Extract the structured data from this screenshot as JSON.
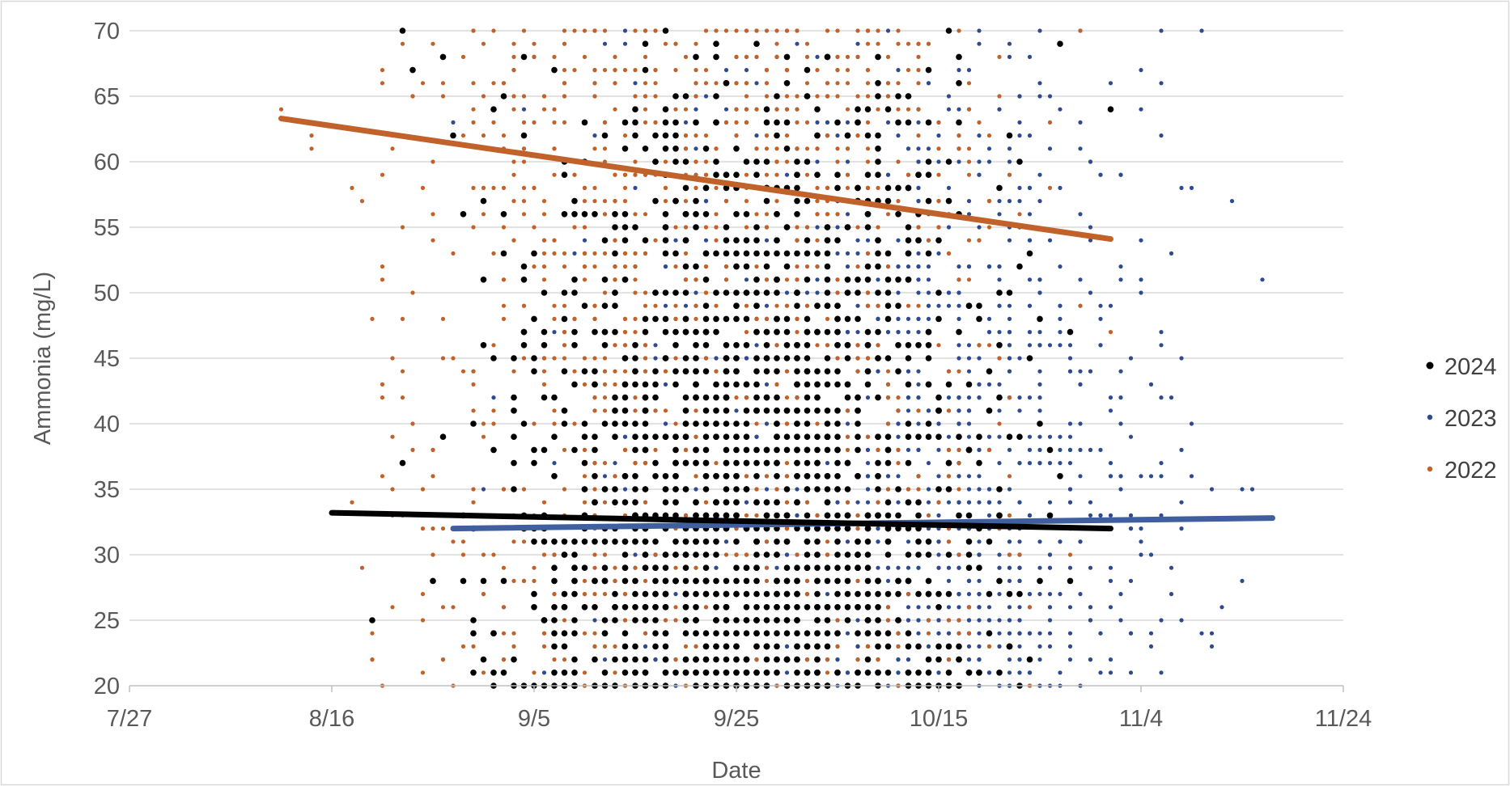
{
  "chart_data": {
    "type": "scatter",
    "title": "",
    "xlabel": "Date",
    "ylabel": "Ammonia (mg/L)",
    "x_ticks": [
      "7/27",
      "8/16",
      "9/5",
      "9/25",
      "10/15",
      "11/4",
      "11/24"
    ],
    "y_ticks": [
      "20",
      "25",
      "30",
      "35",
      "40",
      "45",
      "50",
      "55",
      "60",
      "65",
      "70"
    ],
    "xlim": [
      "7/27",
      "11/24"
    ],
    "ylim": [
      20,
      70
    ],
    "grid": "horizontal",
    "legend_position": "right",
    "series": [
      {
        "name": "2024",
        "color": "#000000",
        "marker": "large-dot",
        "date_range": [
          "8/20",
          "11/1"
        ],
        "sample_points": [
          [
            "8/20",
            25
          ],
          [
            "8/23",
            70
          ],
          [
            "8/27",
            68
          ],
          [
            "9/2",
            65
          ],
          [
            "9/5",
            20
          ],
          [
            "9/10",
            56
          ],
          [
            "9/20",
            44
          ],
          [
            "9/28",
            33
          ],
          [
            "10/3",
            21
          ],
          [
            "10/8",
            47
          ],
          [
            "10/12",
            58
          ],
          [
            "10/17",
            68
          ],
          [
            "10/25",
            48
          ],
          [
            "11/1",
            64
          ]
        ],
        "trendline": {
          "start": [
            "8/16",
            33.2
          ],
          "end": [
            "11/1",
            32.0
          ],
          "color": "#000000"
        }
      },
      {
        "name": "2023",
        "color": "#2f4b8f",
        "marker": "small-dot",
        "date_range": [
          "8/28",
          "11/16"
        ],
        "sample_points": [
          [
            "8/28",
            63
          ],
          [
            "9/12",
            40
          ],
          [
            "9/28",
            24
          ],
          [
            "10/8",
            36
          ],
          [
            "10/18",
            30
          ],
          [
            "10/28",
            28
          ],
          [
            "11/4",
            50
          ],
          [
            "11/8",
            58
          ],
          [
            "11/10",
            70
          ],
          [
            "11/14",
            35
          ],
          [
            "11/16",
            51
          ]
        ],
        "trendline": {
          "start": [
            "8/28",
            32.0
          ],
          "end": [
            "11/17",
            32.8
          ],
          "color": "#3f5f9e"
        }
      },
      {
        "name": "2022",
        "color": "#c0622a",
        "marker": "small-dot",
        "date_range": [
          "8/11",
          "11/1"
        ],
        "sample_points": [
          [
            "8/11",
            64
          ],
          [
            "8/18",
            58
          ],
          [
            "8/24",
            65
          ],
          [
            "8/26",
            36
          ],
          [
            "8/27",
            22
          ],
          [
            "9/2",
            48
          ],
          [
            "9/15",
            50
          ],
          [
            "9/25",
            44
          ],
          [
            "10/5",
            40
          ],
          [
            "10/20",
            38
          ],
          [
            "10/29",
            70
          ],
          [
            "11/1",
            47
          ]
        ],
        "trendline": {
          "start": [
            "8/11",
            63.3
          ],
          "end": [
            "11/1",
            54.1
          ],
          "color": "#c0622a"
        }
      }
    ]
  }
}
